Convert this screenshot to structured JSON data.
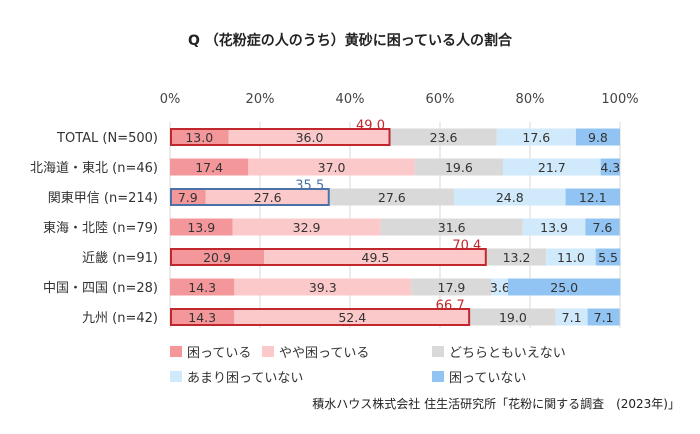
{
  "chart_data": {
    "type": "bar",
    "stacked": true,
    "orientation": "horizontal",
    "title": "Q （花粉症の人のうち）黄砂に困っている人の割合",
    "xlim": [
      0,
      100
    ],
    "x_ticks": [
      "0%",
      "20%",
      "40%",
      "60%",
      "80%",
      "100%"
    ],
    "grid": true,
    "legend_position": "bottom",
    "categories": [
      "TOTAL (N=500)",
      "北海道・東北 (n=46)",
      "関東甲信 (n=214)",
      "東海・北陸 (n=79)",
      "近畿 (n=91)",
      "中国・四国 (n=28)",
      "九州 (n=42)"
    ],
    "series": [
      {
        "name": "困っている",
        "color": "#f4979b",
        "values": [
          13.0,
          17.4,
          7.9,
          13.9,
          20.9,
          14.3,
          14.3
        ]
      },
      {
        "name": "やや困っている",
        "color": "#fcc9cb",
        "values": [
          36.0,
          37.0,
          27.6,
          32.9,
          49.5,
          39.3,
          52.4
        ]
      },
      {
        "name": "どちらともいえない",
        "color": "#d9d9d9",
        "values": [
          23.6,
          19.6,
          27.6,
          31.6,
          13.2,
          17.9,
          19.0
        ]
      },
      {
        "name": "あまり困っていない",
        "color": "#d0eafb",
        "values": [
          17.6,
          21.7,
          24.8,
          13.9,
          11.0,
          3.6,
          7.1
        ]
      },
      {
        "name": "困っていない",
        "color": "#91c4f2",
        "values": [
          9.8,
          4.3,
          12.1,
          7.6,
          5.5,
          25.0,
          7.1
        ]
      }
    ],
    "value_labels": [
      [
        "13.0",
        "36.0",
        "23.6",
        "17.6",
        "9.8"
      ],
      [
        "17.4",
        "37.0",
        "19.6",
        "21.7",
        "4.3"
      ],
      [
        "7.9",
        "27.6",
        "27.6",
        "24.8",
        "12.1"
      ],
      [
        "13.9",
        "32.9",
        "31.6",
        "13.9",
        "7.6"
      ],
      [
        "20.9",
        "49.5",
        "13.2",
        "11.0",
        "5.5"
      ],
      [
        "14.3",
        "39.3",
        "17.9",
        "3.6",
        "25.0"
      ],
      [
        "14.3",
        "52.4",
        "19.0",
        "7.1",
        "7.1"
      ]
    ],
    "highlights": [
      {
        "row": 0,
        "total": "49.0",
        "color": "#c0282d"
      },
      {
        "row": 2,
        "total": "35.5",
        "color": "#4a72a8"
      },
      {
        "row": 4,
        "total": "70.4",
        "color": "#c0282d"
      },
      {
        "row": 6,
        "total": "66.7",
        "color": "#c0282d"
      }
    ],
    "source": "積水ハウス株式会社 住生活研究所「花粉に関する調査　(2023年)」"
  }
}
